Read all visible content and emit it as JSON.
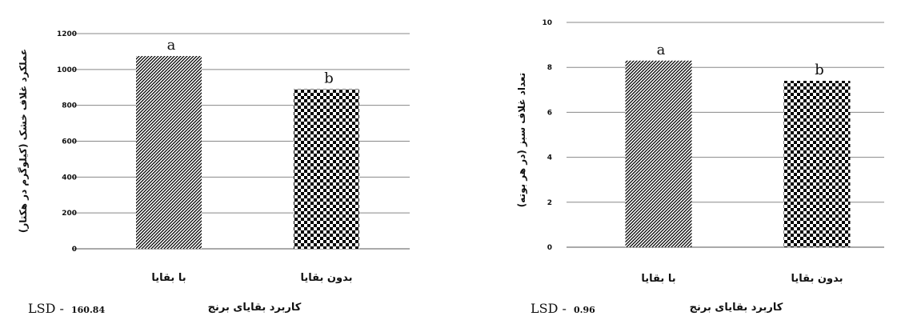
{
  "chart_data": [
    {
      "type": "bar",
      "categories": [
        "با بقایا",
        "بدون بقایا"
      ],
      "values": [
        1075,
        890
      ],
      "significance_letters": [
        "a",
        "b"
      ],
      "ylabel": "عملکرد غلاف خشک (کیلوگرم در هکتار)",
      "xlabel": "کاربرد بقایای برنج",
      "ylim": [
        0,
        1200
      ],
      "yticks": [
        0,
        200,
        400,
        600,
        800,
        1000,
        1200
      ],
      "lsd_label": "LSD -",
      "lsd_value": "160.84",
      "grid": true,
      "legend": "none",
      "bar_patterns": [
        "diagonal-stripes",
        "checkerboard"
      ]
    },
    {
      "type": "bar",
      "categories": [
        "با بقایا",
        "بدون بقایا"
      ],
      "values": [
        8.3,
        7.4
      ],
      "significance_letters": [
        "a",
        "b"
      ],
      "ylabel": "تعداد غلاف سبز (در هر بوته)",
      "xlabel": "کاربرد بقایای برنج",
      "ylim": [
        0,
        10
      ],
      "yticks": [
        0,
        2,
        4,
        6,
        8,
        10
      ],
      "lsd_label": "LSD -",
      "lsd_value": "0.96",
      "grid": true,
      "legend": "none",
      "bar_patterns": [
        "diagonal-stripes",
        "checkerboard"
      ]
    }
  ]
}
